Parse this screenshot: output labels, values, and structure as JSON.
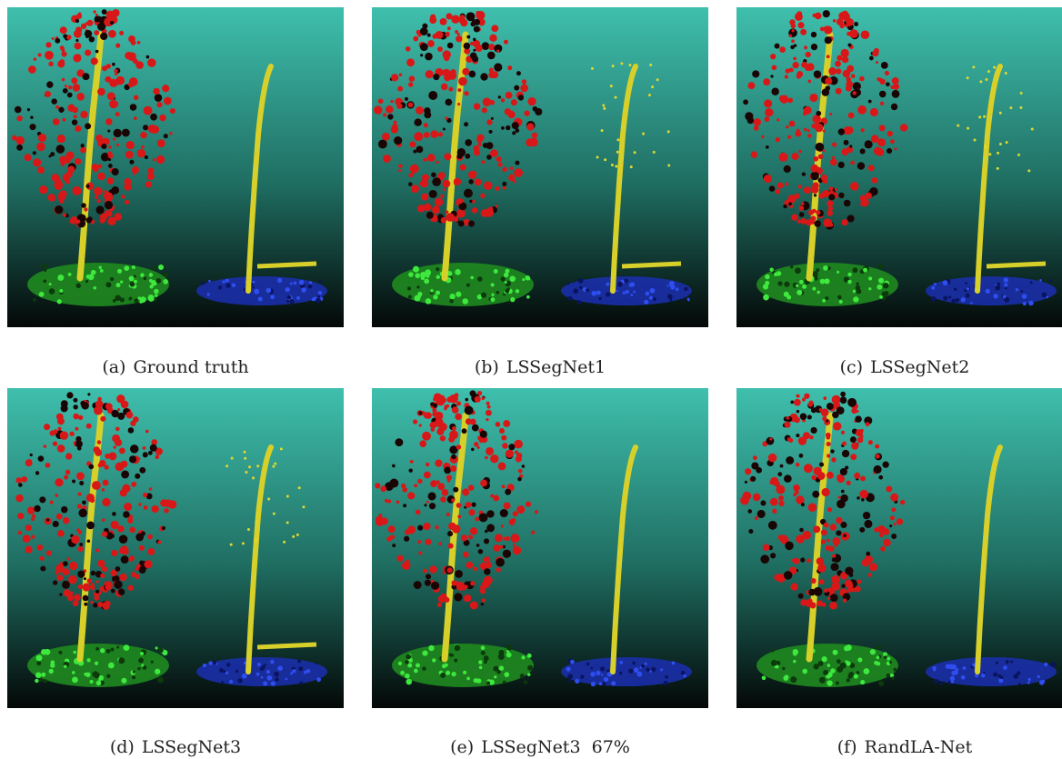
{
  "figure": {
    "panels": [
      {
        "label": "(a)",
        "caption": "Ground truth"
      },
      {
        "label": "(b)",
        "caption": "LSSegNet1"
      },
      {
        "label": "(c)",
        "caption": "LSSegNet2"
      },
      {
        "label": "(d)",
        "caption": "LSSegNet3"
      },
      {
        "label": "(e)",
        "caption": "LSSegNet3  67%"
      },
      {
        "label": "(f)",
        "caption": "RandLA-Net"
      }
    ]
  }
}
